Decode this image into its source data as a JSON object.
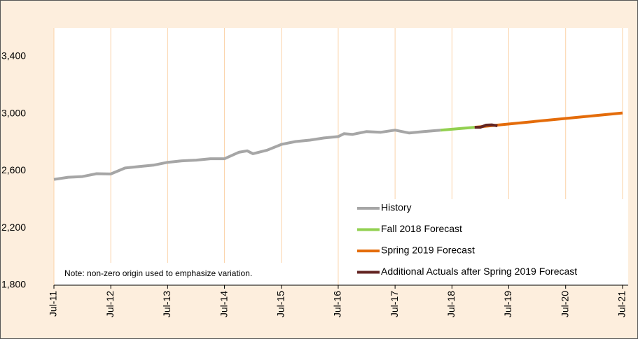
{
  "chart_data": {
    "type": "line",
    "note": "Note: non-zero origin used to emphasize variation.",
    "xlim": [
      2011.5,
      2021.6
    ],
    "ylim": [
      1800,
      3600
    ],
    "xticks": [
      {
        "value": 2011.5,
        "label": "Jul-11"
      },
      {
        "value": 2012.5,
        "label": "Jul-12"
      },
      {
        "value": 2013.5,
        "label": "Jul-13"
      },
      {
        "value": 2014.5,
        "label": "Jul-14"
      },
      {
        "value": 2015.5,
        "label": "Jul-15"
      },
      {
        "value": 2016.5,
        "label": "Jul-16"
      },
      {
        "value": 2017.5,
        "label": "Jul-17"
      },
      {
        "value": 2018.5,
        "label": "Jul-18"
      },
      {
        "value": 2019.5,
        "label": "Jul-19"
      },
      {
        "value": 2020.5,
        "label": "Jul-20"
      },
      {
        "value": 2021.5,
        "label": "Jul-21"
      }
    ],
    "yticks": [
      {
        "value": 1800,
        "label": "1,800"
      },
      {
        "value": 2200,
        "label": "2,200"
      },
      {
        "value": 2600,
        "label": "2,600"
      },
      {
        "value": 3000,
        "label": "3,000"
      },
      {
        "value": 3400,
        "label": "3,400"
      }
    ],
    "grid": true,
    "legend": "lower right",
    "series": [
      {
        "name": "History",
        "color": "#a6a6a6",
        "x": [
          2011.5,
          2011.75,
          2012.0,
          2012.25,
          2012.5,
          2012.75,
          2013.0,
          2013.25,
          2013.5,
          2013.75,
          2014.0,
          2014.25,
          2014.5,
          2014.75,
          2014.9,
          2015.0,
          2015.25,
          2015.5,
          2015.75,
          2016.0,
          2016.25,
          2016.5,
          2016.6,
          2016.75,
          2017.0,
          2017.25,
          2017.5,
          2017.75,
          2018.0,
          2018.3
        ],
        "values": [
          2540,
          2555,
          2560,
          2580,
          2578,
          2620,
          2630,
          2640,
          2660,
          2670,
          2675,
          2685,
          2685,
          2730,
          2740,
          2720,
          2745,
          2785,
          2805,
          2815,
          2830,
          2840,
          2860,
          2855,
          2875,
          2870,
          2885,
          2865,
          2875,
          2885
        ]
      },
      {
        "name": "Fall 2018 Forecast",
        "color": "#92d050",
        "x": [
          2018.3,
          2018.9
        ],
        "values": [
          2885,
          2905
        ]
      },
      {
        "name": "Spring 2019 Forecast",
        "color": "#e46c0a",
        "x": [
          2018.9,
          2021.5
        ],
        "values": [
          2905,
          3005
        ]
      },
      {
        "name": "Additional Actuals after Spring 2019 Forecast",
        "color": "#632523",
        "x": [
          2018.9,
          2019.0,
          2019.1,
          2019.2,
          2019.3
        ],
        "values": [
          2905,
          2905,
          2920,
          2922,
          2915
        ]
      }
    ]
  }
}
